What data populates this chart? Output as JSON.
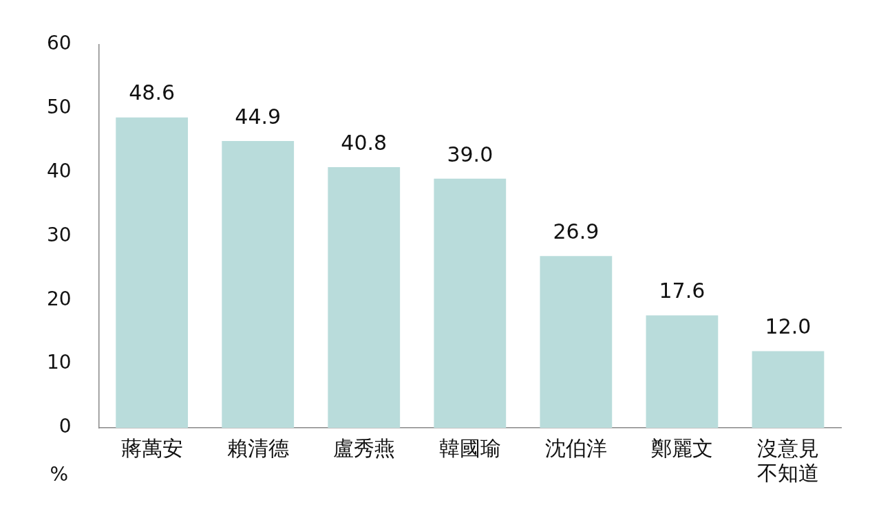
{
  "chart_data": {
    "type": "bar",
    "ylabel": "%",
    "categories": [
      "蔣萬安",
      "賴清德",
      "盧秀燕",
      "韓國瑜",
      "沈伯洋",
      "鄭麗文",
      "沒意見不知道"
    ],
    "values": [
      48.6,
      44.9,
      40.8,
      39.0,
      26.9,
      17.6,
      12.0
    ],
    "value_labels": [
      "48.6",
      "44.9",
      "40.8",
      "39.0",
      "26.9",
      "17.6",
      "12.0"
    ],
    "color": "#b9dcdb",
    "ylim": [
      0,
      60
    ],
    "yticks": [
      0,
      10,
      20,
      30,
      40,
      50,
      60
    ],
    "grid": false,
    "legend": false
  }
}
